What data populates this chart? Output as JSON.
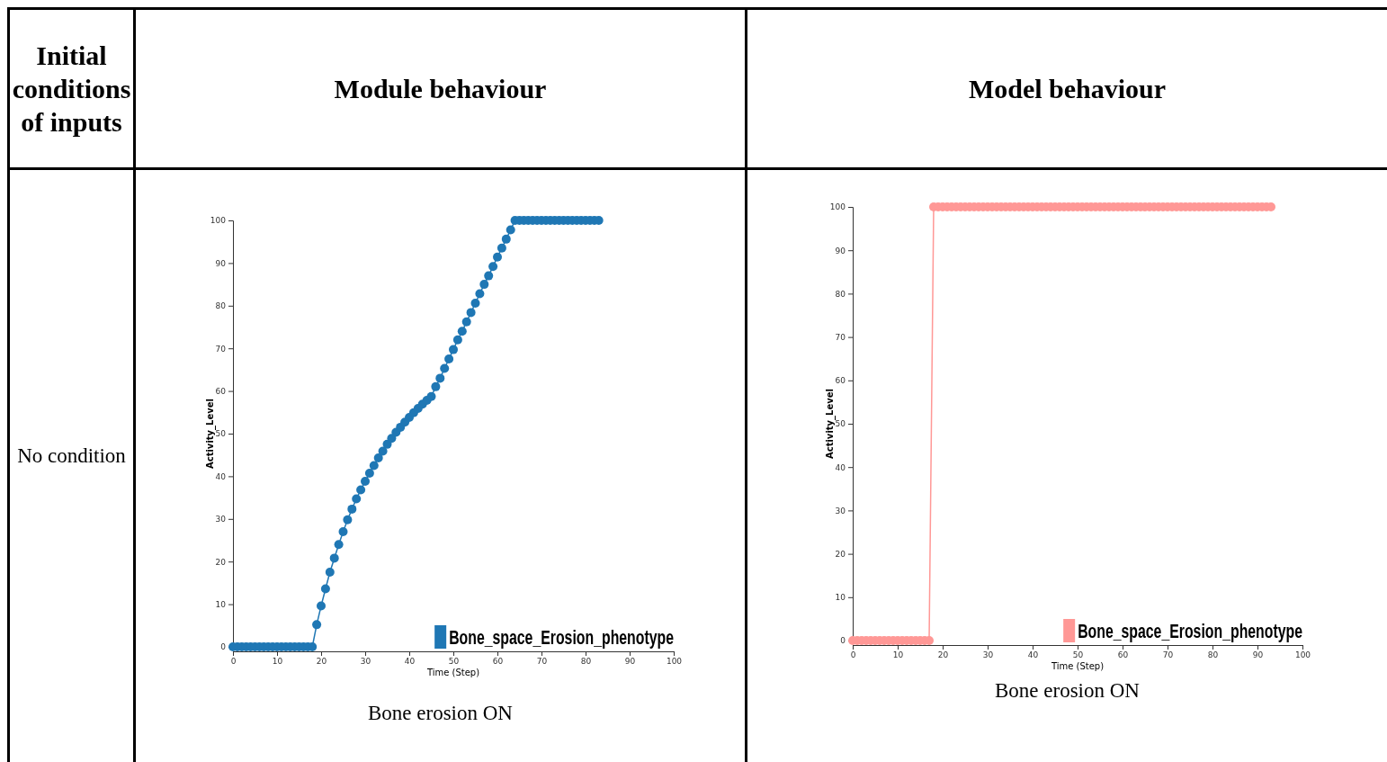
{
  "chart_data": [
    {
      "type": "other",
      "title": "Initial conditions of inputs",
      "annotations": [
        "No condition"
      ]
    },
    {
      "type": "line",
      "title": "Module behaviour",
      "xlabel": "Time (Step)",
      "ylabel": "Activity_Level",
      "annotations": [
        "Bone erosion ON"
      ],
      "xlim": [
        0,
        100
      ],
      "ylim": [
        0,
        100
      ],
      "xticks": [
        0,
        10,
        20,
        30,
        40,
        50,
        60,
        70,
        80,
        90,
        100
      ],
      "yticks": [
        0,
        10,
        20,
        30,
        40,
        50,
        60,
        70,
        80,
        90,
        100
      ],
      "legend": "bottom right",
      "marker": "circle",
      "line_style": "solid",
      "x": [
        0,
        1,
        2,
        3,
        4,
        5,
        6,
        7,
        8,
        9,
        10,
        11,
        12,
        13,
        14,
        15,
        16,
        17,
        18,
        19,
        20,
        21,
        22,
        23,
        24,
        25,
        26,
        27,
        28,
        29,
        30,
        31,
        32,
        33,
        34,
        35,
        36,
        37,
        38,
        39,
        40,
        41,
        42,
        43,
        44,
        45,
        46,
        47,
        48,
        49,
        50,
        51,
        52,
        53,
        54,
        55,
        56,
        57,
        58,
        59,
        60,
        61,
        62,
        63,
        64,
        65,
        66,
        67,
        68,
        69,
        70,
        71,
        72,
        73,
        74,
        75,
        76,
        77,
        78,
        79,
        80,
        81,
        82,
        83
      ],
      "series": [
        {
          "name": "Bone_space_Erosion_phenotype",
          "color": "#1f77b4",
          "values": [
            0,
            0,
            0,
            0,
            0,
            0,
            0,
            0,
            0,
            0,
            0,
            0,
            0,
            0,
            0,
            0,
            0,
            0,
            0,
            5.2,
            9.6,
            13.6,
            17.5,
            20.8,
            24,
            27,
            29.8,
            32.3,
            34.7,
            36.8,
            38.8,
            40.7,
            42.5,
            44.3,
            45.9,
            47.5,
            48.9,
            50.3,
            51.5,
            52.7,
            53.8,
            54.9,
            55.9,
            56.9,
            57.8,
            58.7,
            61,
            63,
            65.3,
            67.5,
            69.7,
            72,
            74,
            76.2,
            78.4,
            80.6,
            82.8,
            85,
            87,
            89.2,
            91.4,
            93.5,
            95.6,
            97.8,
            100,
            100,
            100,
            100,
            100,
            100,
            100,
            100,
            100,
            100,
            100,
            100,
            100,
            100,
            100,
            100,
            100,
            100,
            100,
            100
          ]
        }
      ]
    },
    {
      "type": "line",
      "title": "Model behaviour",
      "xlabel": "Time (Step)",
      "ylabel": "Activity_Level",
      "annotations": [
        "Bone erosion ON"
      ],
      "xlim": [
        0,
        100
      ],
      "ylim": [
        0,
        100
      ],
      "xticks": [
        0,
        10,
        20,
        30,
        40,
        50,
        60,
        70,
        80,
        90,
        100
      ],
      "yticks": [
        0,
        10,
        20,
        30,
        40,
        50,
        60,
        70,
        80,
        90,
        100
      ],
      "legend": "bottom right",
      "marker": "circle",
      "line_style": "solid",
      "x": [
        0,
        1,
        2,
        3,
        4,
        5,
        6,
        7,
        8,
        9,
        10,
        11,
        12,
        13,
        14,
        15,
        16,
        17,
        18,
        19,
        20,
        21,
        22,
        23,
        24,
        25,
        26,
        27,
        28,
        29,
        30,
        31,
        32,
        33,
        34,
        35,
        36,
        37,
        38,
        39,
        40,
        41,
        42,
        43,
        44,
        45,
        46,
        47,
        48,
        49,
        50,
        51,
        52,
        53,
        54,
        55,
        56,
        57,
        58,
        59,
        60,
        61,
        62,
        63,
        64,
        65,
        66,
        67,
        68,
        69,
        70,
        71,
        72,
        73,
        74,
        75,
        76,
        77,
        78,
        79,
        80,
        81,
        82,
        83,
        84,
        85,
        86,
        87,
        88,
        89,
        90,
        91,
        92,
        93
      ],
      "series": [
        {
          "name": "Bone_space_Erosion_phenotype",
          "color": "#ff9896",
          "values": [
            0,
            0,
            0,
            0,
            0,
            0,
            0,
            0,
            0,
            0,
            0,
            0,
            0,
            0,
            0,
            0,
            0,
            0,
            100,
            100,
            100,
            100,
            100,
            100,
            100,
            100,
            100,
            100,
            100,
            100,
            100,
            100,
            100,
            100,
            100,
            100,
            100,
            100,
            100,
            100,
            100,
            100,
            100,
            100,
            100,
            100,
            100,
            100,
            100,
            100,
            100,
            100,
            100,
            100,
            100,
            100,
            100,
            100,
            100,
            100,
            100,
            100,
            100,
            100,
            100,
            100,
            100,
            100,
            100,
            100,
            100,
            100,
            100,
            100,
            100,
            100,
            100,
            100,
            100,
            100,
            100,
            100,
            100,
            100,
            100,
            100,
            100,
            100,
            100,
            100,
            100,
            100,
            100,
            100
          ]
        }
      ]
    }
  ]
}
